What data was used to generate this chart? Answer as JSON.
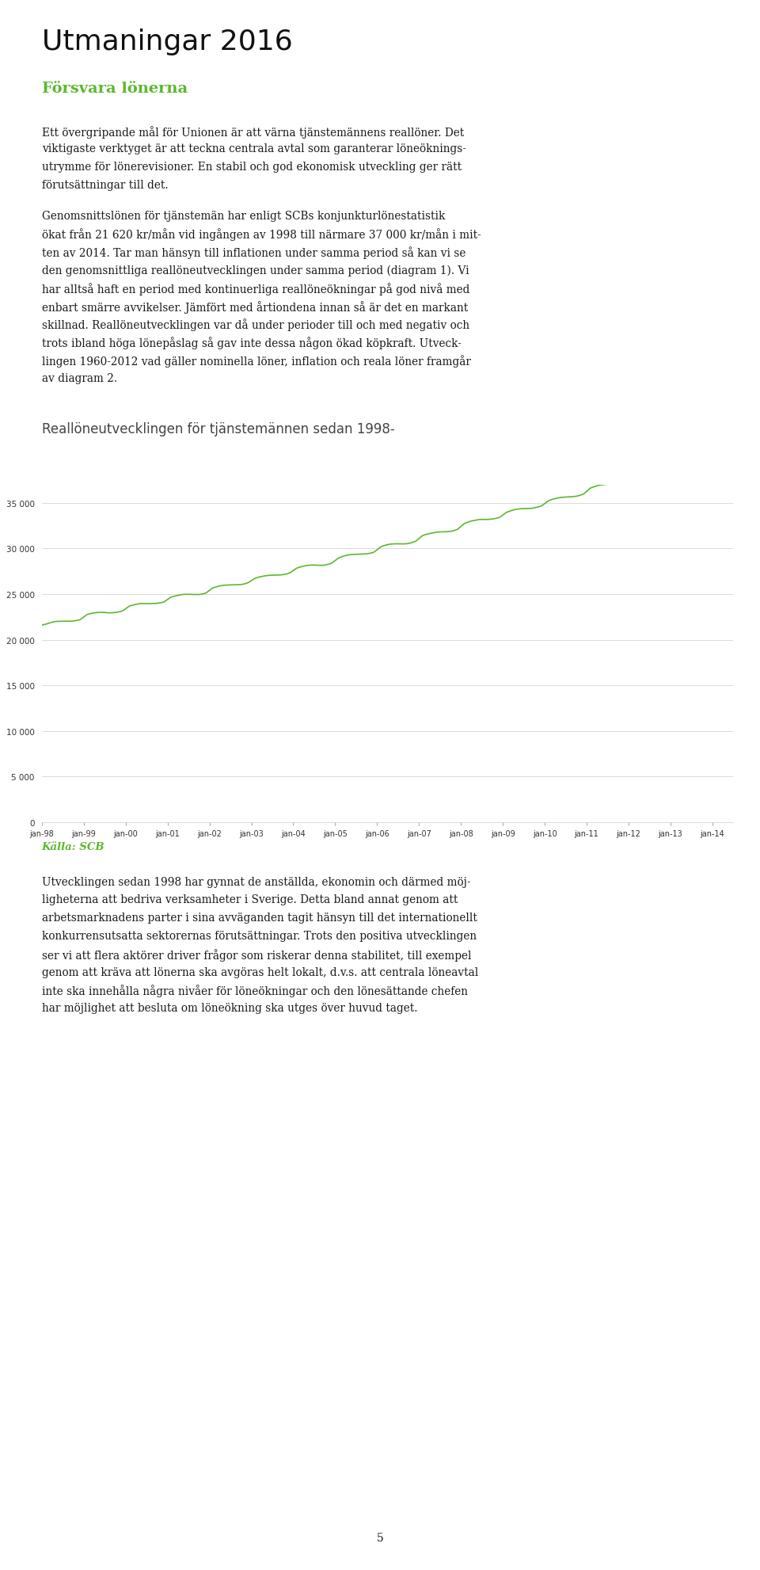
{
  "page_title": "Utmaningar 2016",
  "section_header": "Försvara lönerna",
  "para1_lines": [
    "Ett övergripande mål för Unionen är att värna tjänstemännens reallöner. Det",
    "viktigaste verktyget är att teckna centrala avtal som garanterar löneöknings-",
    "utrymme för lönerevisioner. En stabil och god ekonomisk utveckling ger rätt",
    "förutsättningar till det."
  ],
  "para2_lines": [
    "Genomsnittslönen för tjänstemän har enligt SCBs konjunkturlönestatistik",
    "ökat från 21 620 kr/mån vid ingången av 1998 till närmare 37 000 kr/mån i mit-",
    "ten av 2014. Tar man hänsyn till inflationen under samma period så kan vi se",
    "den genomsnittliga reallöneutvecklingen under samma period (diagram 1). Vi",
    "har alltså haft en period med kontinuerliga reallöneökningar på god nivå med",
    "enbart smärre avvikelser. Jämfört med årtiondena innan så är det en markant",
    "skillnad. Reallöneutvecklingen var då under perioder till och med negativ och",
    "trots ibland höga lönepåslag så gav inte dessa någon ökad köpkraft. Utveck-",
    "lingen 1960-2012 vad gäller nominella löner, inflation och reala löner framgår",
    "av diagram 2."
  ],
  "chart_title": "Reallöneutvecklingen för tjänstemännen sedan 1998-",
  "source_note": "Källa: SCB",
  "para3_lines": [
    "Utvecklingen sedan 1998 har gynnat de anställda, ekonomin och därmed möj-",
    "ligheterna att bedriva verksamheter i Sverige. Detta bland annat genom att",
    "arbetsmarknadens parter i sina avväganden tagit hänsyn till det internationellt",
    "konkurrensutsatta sektorernas förutsättningar. Trots den positiva utvecklingen",
    "ser vi att flera aktörer driver frågor som riskerar denna stabilitet, till exempel",
    "genom att kräva att lönerna ska avgöras helt lokalt, d.v.s. att centrala löneavtal",
    "inte ska innehålla några nivåer för löneökningar och den lönesättande chefen",
    "har möjlighet att besluta om löneökning ska utges över huvud taget."
  ],
  "page_number": "5",
  "line_color": "#5cb82e",
  "grid_color": "#cccccc",
  "yticks": [
    0,
    5000,
    10000,
    15000,
    20000,
    25000,
    30000,
    35000
  ],
  "xtick_labels": [
    "jan-98",
    "jan-99",
    "jan-00",
    "jan-01",
    "jan-02",
    "jan-03",
    "jan-04",
    "jan-05",
    "jan-06",
    "jan-07",
    "jan-08",
    "jan-09",
    "jan-10",
    "jan-11",
    "jan-12",
    "jan-13",
    "jan-14"
  ],
  "background_color": "#ffffff",
  "text_color": "#1a1a1a",
  "green_header_color": "#5cb82e",
  "chart_title_color": "#444444",
  "separator_color": "#888888"
}
